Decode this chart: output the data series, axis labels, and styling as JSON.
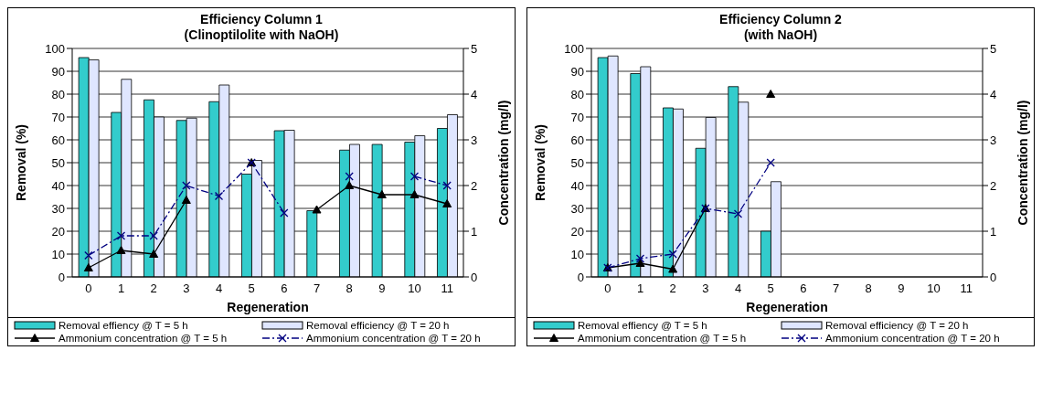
{
  "chart_data": [
    {
      "type": "bar",
      "title": "Efficiency Column 1",
      "subtitle": "(Clinoptilolite with NaOH)",
      "xlabel": "Regeneration",
      "ylabel": "Removal (%)",
      "y2label": "Concentration (mg/l)",
      "categories": [
        "0",
        "1",
        "2",
        "3",
        "4",
        "5",
        "6",
        "7",
        "8",
        "9",
        "10",
        "11"
      ],
      "series": [
        {
          "name": "Removal effiency @ T = 5 h",
          "color": "#33cccc",
          "values": [
            96,
            72,
            77.5,
            68.5,
            76.7,
            45,
            64,
            29,
            55.5,
            58,
            59,
            65
          ]
        },
        {
          "name": "Removal efficiency @ T = 20 h",
          "color": "#dfe6ff",
          "values": [
            95,
            86.5,
            70,
            69.5,
            84,
            51,
            64.2,
            null,
            58,
            null,
            61.8,
            71
          ]
        },
        {
          "name": "Ammonium concentration @ T = 5 h",
          "type": "line",
          "axis": "y2",
          "color": "#000000",
          "marker": "triangle",
          "line_style": "solid",
          "values": [
            0.2,
            0.58,
            0.5,
            1.68,
            null,
            2.5,
            null,
            1.47,
            2.0,
            1.8,
            1.8,
            1.6
          ]
        },
        {
          "name": "Ammonium concentration @ T = 20 h",
          "type": "line",
          "axis": "y2",
          "color": "#000080",
          "marker": "cross",
          "line_style": "dashed",
          "values": [
            0.47,
            0.9,
            0.9,
            2.0,
            1.77,
            2.5,
            1.4,
            null,
            2.2,
            null,
            2.2,
            2.0
          ]
        }
      ],
      "ylim": [
        0,
        100
      ],
      "yticks": [
        0,
        10,
        20,
        30,
        40,
        50,
        60,
        70,
        80,
        90,
        100
      ],
      "y2lim": [
        0,
        5
      ],
      "y2ticks": [
        0,
        1,
        2,
        3,
        4,
        5
      ],
      "grid": "y",
      "legend": "bottom"
    },
    {
      "type": "bar",
      "title": "Efficiency Column 2",
      "subtitle": "(with NaOH)",
      "xlabel": "Regeneration",
      "ylabel": "Removal (%)",
      "y2label": "Concentration (mg/l)",
      "categories": [
        "0",
        "1",
        "2",
        "3",
        "4",
        "5",
        "6",
        "7",
        "8",
        "9",
        "10",
        "11"
      ],
      "series": [
        {
          "name": "Removal effiency @ T = 5 h",
          "color": "#33cccc",
          "values": [
            96,
            89,
            74,
            56.3,
            83.3,
            20,
            null,
            null,
            null,
            null,
            null,
            null
          ]
        },
        {
          "name": "Removal efficiency @ T = 20 h",
          "color": "#dfe6ff",
          "values": [
            96.7,
            92,
            73.5,
            69.8,
            76.5,
            41.7,
            null,
            null,
            null,
            null,
            null,
            null
          ]
        },
        {
          "name": "Ammonium concentration @ T = 5 h",
          "type": "line",
          "axis": "y2",
          "color": "#000000",
          "marker": "triangle",
          "line_style": "solid",
          "values": [
            0.2,
            0.3,
            0.17,
            1.5,
            null,
            4.0,
            null,
            null,
            null,
            null,
            null,
            null
          ]
        },
        {
          "name": "Ammonium concentration @ T = 20 h",
          "type": "line",
          "axis": "y2",
          "color": "#000080",
          "marker": "cross",
          "line_style": "dashed",
          "values": [
            0.2,
            0.4,
            0.5,
            1.5,
            1.38,
            2.5,
            null,
            null,
            null,
            null,
            null,
            null
          ]
        }
      ],
      "ylim": [
        0,
        100
      ],
      "yticks": [
        0,
        10,
        20,
        30,
        40,
        50,
        60,
        70,
        80,
        90,
        100
      ],
      "y2lim": [
        0,
        5
      ],
      "y2ticks": [
        0,
        1,
        2,
        3,
        4,
        5
      ],
      "grid": "y",
      "legend": "bottom"
    }
  ]
}
